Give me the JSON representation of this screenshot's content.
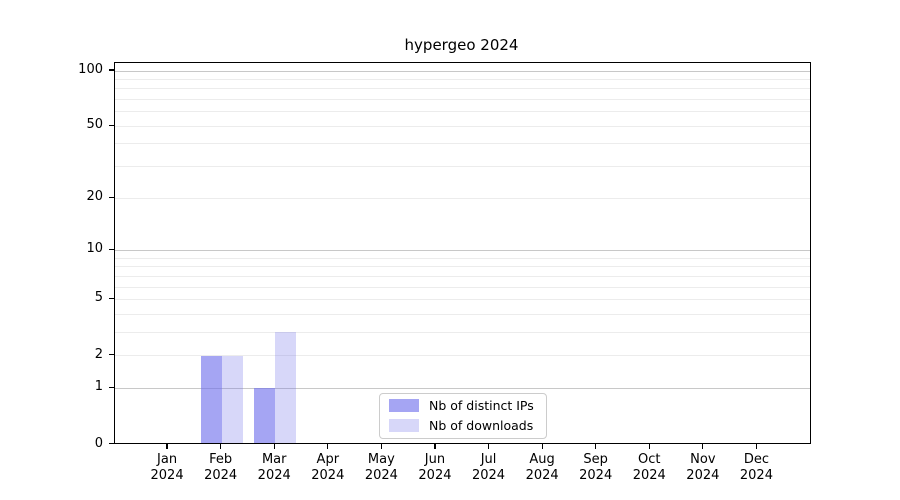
{
  "title": "hypergeo 2024",
  "legend": {
    "items": [
      {
        "label": "Nb of distinct IPs",
        "color": "rgba(110,110,235,0.62)"
      },
      {
        "label": "Nb of downloads",
        "color": "rgba(110,110,235,0.28)"
      }
    ]
  },
  "chart_data": {
    "type": "bar",
    "title": "hypergeo 2024",
    "categories": [
      "Jan",
      "Feb",
      "Mar",
      "Apr",
      "May",
      "Jun",
      "Jul",
      "Aug",
      "Sep",
      "Oct",
      "Nov",
      "Dec"
    ],
    "year": "2024",
    "series": [
      {
        "name": "Nb of distinct IPs",
        "color": "rgba(110,110,235,0.62)",
        "values": [
          0,
          2,
          1,
          0,
          0,
          0,
          0,
          0,
          0,
          0,
          0,
          0
        ]
      },
      {
        "name": "Nb of downloads",
        "color": "rgba(110,110,235,0.28)",
        "values": [
          0,
          2,
          3,
          0,
          0,
          0,
          0,
          0,
          0,
          0,
          0,
          0
        ]
      }
    ],
    "xlabel": "",
    "ylabel": "",
    "yscale": "log1p",
    "ylim": [
      0,
      100
    ],
    "yticks": [
      0,
      1,
      2,
      5,
      10,
      20,
      50,
      100
    ],
    "grid": true,
    "gridlines_major": [
      1,
      10,
      100
    ],
    "gridlines_minor": [
      2,
      3,
      4,
      5,
      6,
      7,
      8,
      9,
      20,
      30,
      40,
      50,
      60,
      70,
      80,
      90
    ],
    "legend_position": "lower center inside plot"
  },
  "colors": {
    "background": "#ffffff",
    "axis": "#000000",
    "grid_major": "#c8c8c8",
    "grid_minor": "#ececec",
    "legend_border": "#cccccc",
    "text": "#000000"
  }
}
